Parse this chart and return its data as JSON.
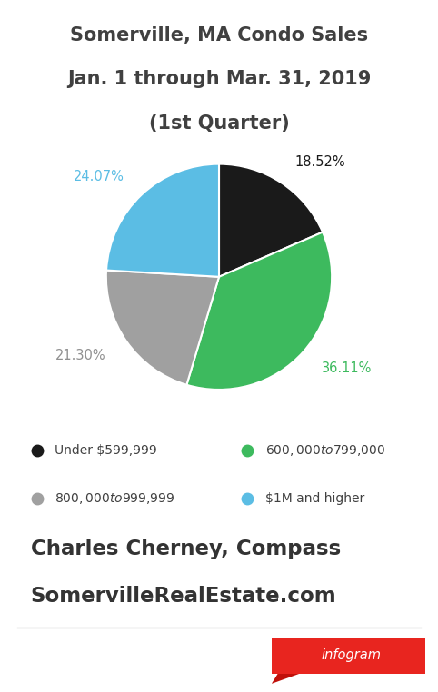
{
  "title_line1": "Somerville, MA Condo Sales",
  "title_line2": "Jan. 1 through Mar. 31, 2019",
  "title_line3": "(1st Quarter)",
  "slices": [
    18.52,
    36.11,
    21.3,
    24.07
  ],
  "colors": [
    "#1a1a1a",
    "#3dba5e",
    "#a0a0a0",
    "#5bbde4"
  ],
  "labels": [
    "18.52%",
    "36.11%",
    "21.30%",
    "24.07%"
  ],
  "label_colors": [
    "#1a1a1a",
    "#3dba5e",
    "#909090",
    "#5bbde4"
  ],
  "legend_labels": [
    "Under $599,999",
    "$600,000 to $799,000",
    "$800,000 to $999,999",
    "$1M and higher"
  ],
  "legend_colors": [
    "#1a1a1a",
    "#3dba5e",
    "#a0a0a0",
    "#5bbde4"
  ],
  "footer_line1": "Charles Cherney, Compass",
  "footer_line2": "SomervilleRealEstate.com",
  "bg_color": "#ffffff",
  "title_color": "#404040",
  "footer_color": "#333333",
  "start_angle": 90,
  "label_distance": 1.22
}
